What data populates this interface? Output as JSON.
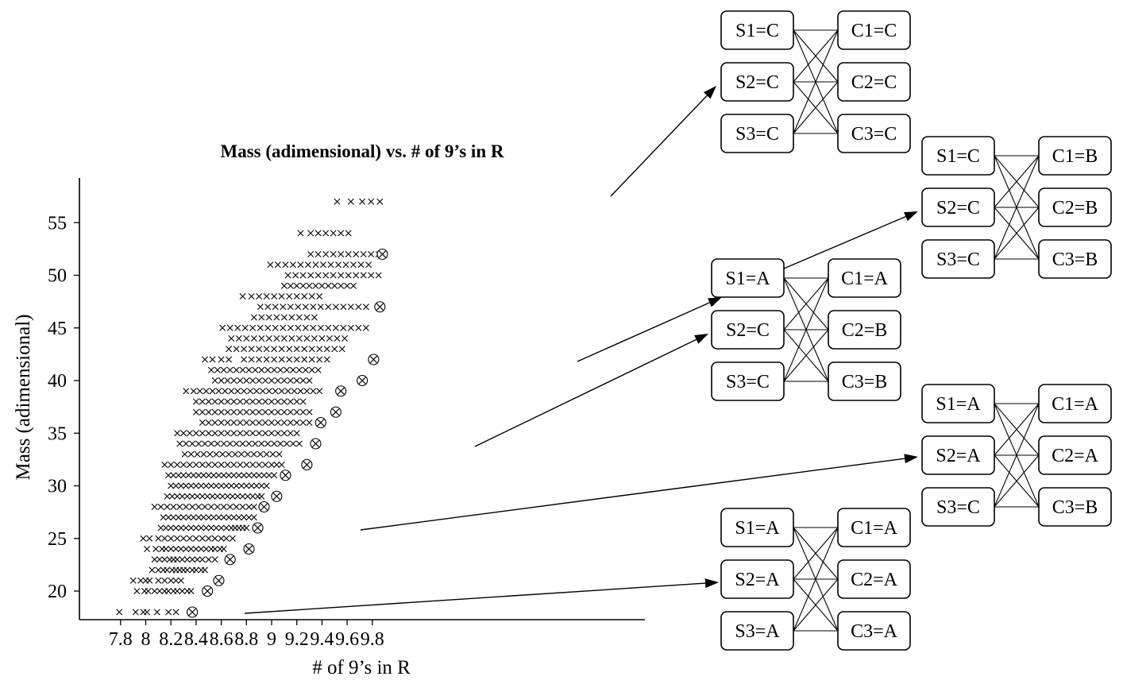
{
  "chart_data": {
    "type": "scatter",
    "title": "Mass (adimensional) vs. # of 9’s in R",
    "xlabel": "# of 9’s in R",
    "ylabel": "Mass (adimensional)",
    "xlim": [
      7.73,
      10.0
    ],
    "ylim": [
      17.4,
      59.5
    ],
    "xticks": [
      7.8,
      8,
      8.2,
      8.4,
      8.6,
      8.8,
      9,
      9.2,
      9.4,
      9.6,
      9.8
    ],
    "xtick_labels": [
      "7.8",
      "8",
      "8.2",
      "8.4",
      "8.6",
      "8.8",
      "9",
      "9.2",
      "9.4",
      "9.6",
      "9.8"
    ],
    "yticks": [
      20,
      25,
      30,
      35,
      40,
      45,
      50,
      55
    ],
    "ytick_labels": [
      "20",
      "25",
      "30",
      "35",
      "40",
      "45",
      "50",
      "55"
    ],
    "grid": false,
    "legend": "none",
    "series": [
      {
        "marker": "x",
        "rows": [
          {
            "y": 18,
            "x": [
              7.79,
              7.92,
              7.98,
              8.01,
              8.09,
              8.18,
              8.24
            ]
          },
          {
            "y": 20,
            "x": [
              7.93,
              7.99,
              8.02,
              8.07,
              8.11,
              8.15,
              8.18,
              8.22,
              8.25,
              8.29,
              8.33,
              8.36
            ]
          },
          {
            "y": 21,
            "x": [
              7.9,
              7.96,
              8.0,
              8.03,
              8.1,
              8.15,
              8.2,
              8.24,
              8.28
            ]
          },
          {
            "y": 22,
            "x": [
              8.05,
              8.1,
              8.14,
              8.17,
              8.21,
              8.24,
              8.27,
              8.3,
              8.33,
              8.37,
              8.4,
              8.44,
              8.47
            ]
          },
          {
            "y": 23,
            "x": [
              8.07,
              8.11,
              8.15,
              8.19,
              8.22,
              8.25,
              8.29,
              8.33,
              8.37,
              8.41,
              8.45,
              8.5,
              8.55
            ]
          },
          {
            "y": 24,
            "x": [
              8.01,
              8.08,
              8.13,
              8.16,
              8.2,
              8.24,
              8.28,
              8.32,
              8.36,
              8.4,
              8.44,
              8.48,
              8.52,
              8.55,
              8.59,
              8.62
            ]
          },
          {
            "y": 25,
            "x": [
              7.98,
              8.03,
              8.1,
              8.15,
              8.2,
              8.25,
              8.3,
              8.35,
              8.4,
              8.45,
              8.5,
              8.55,
              8.6,
              8.64,
              8.69
            ]
          },
          {
            "y": 26,
            "x": [
              8.12,
              8.16,
              8.2,
              8.24,
              8.28,
              8.32,
              8.36,
              8.4,
              8.44,
              8.48,
              8.52,
              8.56,
              8.6,
              8.64,
              8.68,
              8.71,
              8.74,
              8.77,
              8.8
            ]
          },
          {
            "y": 27,
            "x": [
              8.14,
              8.18,
              8.22,
              8.26,
              8.3,
              8.34,
              8.38,
              8.42,
              8.46,
              8.5,
              8.54,
              8.58,
              8.62,
              8.66,
              8.7,
              8.74,
              8.78,
              8.82,
              8.86
            ]
          },
          {
            "y": 28,
            "x": [
              8.07,
              8.12,
              8.17,
              8.22,
              8.27,
              8.32,
              8.37,
              8.42,
              8.47,
              8.52,
              8.57,
              8.62,
              8.67,
              8.72,
              8.77,
              8.82,
              8.86
            ]
          },
          {
            "y": 29,
            "x": [
              8.17,
              8.21,
              8.25,
              8.29,
              8.33,
              8.37,
              8.41,
              8.45,
              8.49,
              8.53,
              8.57,
              8.61,
              8.65,
              8.69,
              8.73,
              8.77,
              8.81,
              8.85,
              8.89,
              8.92
            ]
          },
          {
            "y": 30,
            "x": [
              8.2,
              8.24,
              8.28,
              8.32,
              8.36,
              8.4,
              8.44,
              8.48,
              8.52,
              8.56,
              8.6,
              8.64,
              8.68,
              8.72,
              8.76,
              8.8,
              8.84,
              8.88,
              8.92,
              8.96
            ]
          },
          {
            "y": 31,
            "x": [
              8.18,
              8.22,
              8.26,
              8.3,
              8.34,
              8.38,
              8.42,
              8.46,
              8.5,
              8.54,
              8.58,
              8.62,
              8.66,
              8.7,
              8.74,
              8.78,
              8.82,
              8.86,
              8.9,
              8.94,
              8.98,
              9.02
            ]
          },
          {
            "y": 32,
            "x": [
              8.15,
              8.2,
              8.25,
              8.3,
              8.35,
              8.4,
              8.45,
              8.5,
              8.55,
              8.6,
              8.65,
              8.7,
              8.75,
              8.8,
              8.85,
              8.9,
              8.95,
              9.0,
              9.04,
              9.08
            ]
          },
          {
            "y": 33,
            "x": [
              8.31,
              8.36,
              8.41,
              8.46,
              8.51,
              8.56,
              8.61,
              8.66,
              8.71,
              8.76,
              8.81,
              8.86,
              8.91,
              8.96,
              9.01,
              9.06
            ]
          },
          {
            "y": 34,
            "x": [
              8.27,
              8.32,
              8.37,
              8.42,
              8.47,
              8.52,
              8.57,
              8.62,
              8.67,
              8.72,
              8.77,
              8.82,
              8.87,
              8.92,
              8.97,
              9.02,
              9.07,
              9.12,
              9.17,
              9.22
            ]
          },
          {
            "y": 35,
            "x": [
              8.25,
              8.3,
              8.35,
              8.4,
              8.45,
              8.5,
              8.55,
              8.6,
              8.65,
              8.7,
              8.75,
              8.8,
              8.85,
              8.9,
              8.95,
              9.0,
              9.05,
              9.1,
              9.15,
              9.2
            ]
          },
          {
            "y": 36,
            "x": [
              8.45,
              8.5,
              8.55,
              8.6,
              8.65,
              8.7,
              8.75,
              8.8,
              8.85,
              8.9,
              8.95,
              9.0,
              9.05,
              9.1,
              9.15,
              9.2,
              9.25,
              9.3
            ]
          },
          {
            "y": 37,
            "x": [
              8.4,
              8.45,
              8.5,
              8.55,
              8.6,
              8.65,
              8.7,
              8.75,
              8.8,
              8.85,
              8.9,
              8.95,
              9.0,
              9.05,
              9.1,
              9.15,
              9.2,
              9.25,
              9.3
            ]
          },
          {
            "y": 38,
            "x": [
              8.4,
              8.45,
              8.5,
              8.55,
              8.6,
              8.65,
              8.7,
              8.75,
              8.8,
              8.85,
              8.9,
              8.95,
              9.0,
              9.05,
              9.1,
              9.15,
              9.2,
              9.25
            ]
          },
          {
            "y": 39,
            "x": [
              8.32,
              8.38,
              8.43,
              8.48,
              8.53,
              8.58,
              8.63,
              8.68,
              8.73,
              8.78,
              8.83,
              8.88,
              8.93,
              8.98,
              9.03,
              9.08,
              9.13,
              9.18,
              9.23,
              9.28,
              9.33,
              9.38
            ]
          },
          {
            "y": 40,
            "x": [
              8.55,
              8.6,
              8.65,
              8.7,
              8.75,
              8.8,
              8.85,
              8.9,
              8.95,
              9.0,
              9.05,
              9.1,
              9.15,
              9.2,
              9.25,
              9.3
            ]
          },
          {
            "y": 41,
            "x": [
              8.52,
              8.57,
              8.62,
              8.67,
              8.72,
              8.77,
              8.82,
              8.87,
              8.92,
              8.97,
              9.02,
              9.07,
              9.12,
              9.17,
              9.22,
              9.27,
              9.32,
              9.37
            ]
          },
          {
            "y": 42,
            "x": [
              8.47,
              8.53,
              8.6,
              8.66,
              8.78,
              8.84,
              8.9,
              8.96,
              9.02,
              9.08,
              9.14,
              9.2,
              9.26,
              9.32,
              9.38,
              9.44
            ]
          },
          {
            "y": 43,
            "x": [
              8.66,
              8.72,
              8.78,
              8.84,
              8.9,
              8.96,
              9.02,
              9.08,
              9.14,
              9.2,
              9.26,
              9.32,
              9.38,
              9.44,
              9.5,
              9.56
            ]
          },
          {
            "y": 44,
            "x": [
              8.68,
              8.74,
              8.8,
              8.86,
              8.92,
              8.98,
              9.04,
              9.1,
              9.16,
              9.22,
              9.28,
              9.34,
              9.4,
              9.46,
              9.52,
              9.58
            ]
          },
          {
            "y": 45,
            "x": [
              8.61,
              8.67,
              8.73,
              8.79,
              8.85,
              8.91,
              8.97,
              9.03,
              9.09,
              9.15,
              9.21,
              9.27,
              9.33,
              9.39,
              9.45,
              9.51,
              9.57,
              9.63,
              9.69,
              9.75
            ]
          },
          {
            "y": 46,
            "x": [
              8.86,
              8.92,
              8.98,
              9.04,
              9.1,
              9.16,
              9.22,
              9.28,
              9.34
            ]
          },
          {
            "y": 47,
            "x": [
              8.91,
              8.97,
              9.03,
              9.09,
              9.15,
              9.21,
              9.27,
              9.33,
              9.39,
              9.45,
              9.51,
              9.57,
              9.63,
              9.69,
              9.75
            ]
          },
          {
            "y": 48,
            "x": [
              8.77,
              8.84,
              8.9,
              8.96,
              9.02,
              9.08,
              9.14,
              9.2,
              9.26,
              9.32,
              9.38
            ]
          },
          {
            "y": 49,
            "x": [
              9.1,
              9.15,
              9.2,
              9.25,
              9.3,
              9.35,
              9.4,
              9.45,
              9.5,
              9.55,
              9.6,
              9.65
            ]
          },
          {
            "y": 50,
            "x": [
              9.13,
              9.19,
              9.25,
              9.31,
              9.37,
              9.43,
              9.49,
              9.55,
              9.61,
              9.67,
              9.73,
              9.79,
              9.85
            ]
          },
          {
            "y": 51,
            "x": [
              8.99,
              9.05,
              9.11,
              9.17,
              9.23,
              9.29,
              9.35,
              9.41,
              9.47,
              9.53,
              9.59,
              9.65,
              9.71,
              9.77
            ]
          },
          {
            "y": 52,
            "x": [
              9.31,
              9.37,
              9.43,
              9.49,
              9.55,
              9.61,
              9.67,
              9.73,
              9.79,
              9.85
            ]
          },
          {
            "y": 54,
            "x": [
              9.23,
              9.31,
              9.37,
              9.43,
              9.49,
              9.55,
              9.61
            ]
          },
          {
            "y": 57,
            "x": [
              9.52,
              9.63,
              9.72,
              9.79,
              9.86
            ]
          }
        ]
      },
      {
        "marker": "circled-x",
        "x": [
          8.37,
          8.49,
          8.58,
          8.67,
          8.82,
          8.89,
          8.94,
          9.04,
          9.11,
          9.28,
          9.35,
          9.39,
          9.51,
          9.55,
          9.72,
          9.81,
          9.86,
          9.88
        ],
        "y": [
          18,
          20,
          21,
          23,
          24,
          26,
          28,
          29,
          31,
          32,
          34,
          36,
          37,
          39,
          40,
          42,
          47,
          52
        ]
      }
    ]
  },
  "diagrams": [
    {
      "s": [
        "S1=C",
        "S2=C",
        "S3=C"
      ],
      "c": [
        "C1=C",
        "C2=C",
        "C3=C"
      ]
    },
    {
      "s": [
        "S1=C",
        "S2=C",
        "S3=C"
      ],
      "c": [
        "C1=B",
        "C2=B",
        "C3=B"
      ]
    },
    {
      "s": [
        "S1=A",
        "S2=C",
        "S3=C"
      ],
      "c": [
        "C1=A",
        "C2=B",
        "C3=B"
      ]
    },
    {
      "s": [
        "S1=A",
        "S2=A",
        "S3=C"
      ],
      "c": [
        "C1=A",
        "C2=A",
        "C3=B"
      ]
    },
    {
      "s": [
        "S1=A",
        "S2=A",
        "S3=A"
      ],
      "c": [
        "C1=A",
        "C2=A",
        "C3=A"
      ]
    }
  ]
}
